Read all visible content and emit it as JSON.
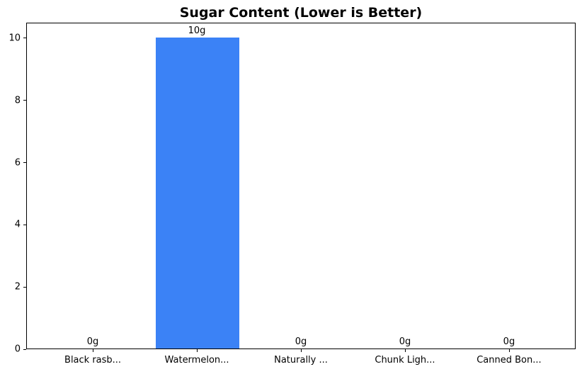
{
  "chart_data": {
    "type": "bar",
    "title": "Sugar Content (Lower is Better)",
    "categories": [
      "Black rasb...",
      "Watermelon...",
      "Naturally ...",
      "Chunk Ligh...",
      "Canned Bon..."
    ],
    "values": [
      0,
      10,
      0,
      0,
      0
    ],
    "value_labels": [
      "0g",
      "10g",
      "0g",
      "0g",
      "0g"
    ],
    "yticks": [
      0,
      2,
      4,
      6,
      8,
      10
    ],
    "ylim": [
      0,
      10.5
    ],
    "xlabel": "",
    "ylabel": "",
    "grid": false,
    "legend_position": "none",
    "bar_color": "#3b82f6",
    "axis_color": "#000000",
    "text_color": "#000000",
    "background_color": "#ffffff"
  }
}
